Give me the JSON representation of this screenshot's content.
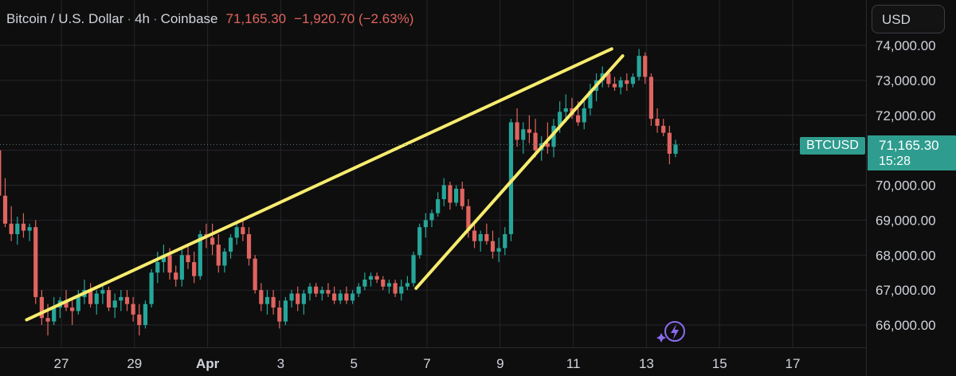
{
  "header": {
    "symbol": "Bitcoin / U.S. Dollar",
    "interval": "4h",
    "exchange": "Coinbase",
    "price": "71,165.30",
    "change": "−1,920.70 (−2.63%)",
    "separator": "·"
  },
  "currency_button": "USD",
  "price_tag": {
    "symbol": "BTCUSD",
    "price": "71,165.30",
    "countdown": "15:28"
  },
  "colors": {
    "up": "#26a69a",
    "down": "#e0645f",
    "trendline": "#f7ec6e",
    "background": "#0e0e0e",
    "grid": "#26262c"
  },
  "chart_data": {
    "type": "candlestick",
    "y_axis": {
      "ticks": [
        66000,
        67000,
        68000,
        69000,
        70000,
        71000,
        72000,
        73000,
        74000
      ],
      "tick_labels": [
        "66,000.00",
        "67,000.00",
        "68,000.00",
        "69,000.00",
        "70,000.00",
        "",
        "72,000.00",
        "73,000.00",
        "74,000.00"
      ]
    },
    "x_axis": {
      "ticks": [
        27,
        29,
        31,
        33,
        35,
        37,
        39,
        41,
        43,
        45,
        47
      ],
      "tick_labels": [
        "27",
        "29",
        "Apr",
        "3",
        "5",
        "7",
        "9",
        "11",
        "13",
        "15",
        "17"
      ]
    },
    "last_price": 71165.3,
    "trendlines": [
      {
        "from": [
          26.05,
          66150
        ],
        "to": [
          42.05,
          73900
        ]
      },
      {
        "from": [
          36.7,
          67050
        ],
        "to": [
          42.35,
          73700
        ]
      }
    ],
    "candles": [
      [
        71500,
        71900,
        70800,
        71200
      ],
      [
        71200,
        71700,
        70900,
        71400
      ],
      [
        71400,
        71900,
        70800,
        71000
      ],
      [
        71000,
        71400,
        70600,
        70900
      ],
      [
        70900,
        71500,
        70700,
        71300
      ],
      [
        71300,
        71700,
        70900,
        71000
      ],
      [
        71000,
        71300,
        69600,
        69700
      ],
      [
        69700,
        70200,
        68800,
        68900
      ],
      [
        68900,
        69400,
        68400,
        68600
      ],
      [
        68600,
        69100,
        68300,
        68900
      ],
      [
        68900,
        69200,
        68500,
        68700
      ],
      [
        68700,
        68900,
        68400,
        68800
      ],
      [
        68800,
        69000,
        66600,
        66800
      ],
      [
        66800,
        67000,
        66000,
        66200
      ],
      [
        66200,
        66600,
        65700,
        66100
      ],
      [
        66100,
        66800,
        66000,
        66500
      ],
      [
        66500,
        66800,
        66200,
        66700
      ],
      [
        66700,
        67000,
        66400,
        66500
      ],
      [
        66500,
        66700,
        66000,
        66400
      ],
      [
        66400,
        67000,
        66300,
        66800
      ],
      [
        66800,
        67300,
        66600,
        67000
      ],
      [
        67000,
        67200,
        66500,
        66600
      ],
      [
        66600,
        67000,
        66300,
        66900
      ],
      [
        66900,
        67200,
        66600,
        67000
      ],
      [
        67000,
        67100,
        66400,
        66500
      ],
      [
        66500,
        66900,
        66200,
        66700
      ],
      [
        66700,
        67000,
        66400,
        66800
      ],
      [
        66800,
        67000,
        66400,
        66600
      ],
      [
        66600,
        66800,
        66100,
        66300
      ],
      [
        66300,
        66600,
        65700,
        66000
      ],
      [
        66000,
        66700,
        65900,
        66600
      ],
      [
        66600,
        67600,
        66500,
        67500
      ],
      [
        67500,
        68100,
        67200,
        67800
      ],
      [
        67800,
        68300,
        67500,
        68000
      ],
      [
        68000,
        68200,
        67300,
        67500
      ],
      [
        67500,
        67700,
        67100,
        67300
      ],
      [
        67300,
        68200,
        67100,
        68000
      ],
      [
        68000,
        68300,
        67600,
        67800
      ],
      [
        67800,
        68100,
        67200,
        67400
      ],
      [
        67400,
        68700,
        67300,
        68600
      ],
      [
        68600,
        68900,
        68200,
        68500
      ],
      [
        68500,
        68900,
        68000,
        68300
      ],
      [
        68300,
        68600,
        67500,
        67700
      ],
      [
        67700,
        68200,
        67500,
        68100
      ],
      [
        68100,
        68600,
        67900,
        68500
      ],
      [
        68500,
        68900,
        68300,
        68800
      ],
      [
        68800,
        69000,
        68400,
        68600
      ],
      [
        68600,
        68800,
        67700,
        67900
      ],
      [
        67900,
        68000,
        66900,
        67000
      ],
      [
        67000,
        67200,
        66400,
        66600
      ],
      [
        66600,
        67000,
        66300,
        66800
      ],
      [
        66800,
        67000,
        66300,
        66500
      ],
      [
        66500,
        66700,
        65900,
        66100
      ],
      [
        66100,
        66800,
        66000,
        66700
      ],
      [
        66700,
        67000,
        66500,
        66900
      ],
      [
        66900,
        67100,
        66400,
        66600
      ],
      [
        66600,
        67000,
        66300,
        66900
      ],
      [
        66900,
        67200,
        66700,
        67100
      ],
      [
        67100,
        67200,
        66800,
        66900
      ],
      [
        66900,
        67100,
        66700,
        67000
      ],
      [
        67000,
        67200,
        66800,
        66900
      ],
      [
        66900,
        67100,
        66600,
        66700
      ],
      [
        66700,
        67000,
        66600,
        66900
      ],
      [
        66900,
        67100,
        66600,
        66700
      ],
      [
        66700,
        67000,
        66600,
        66900
      ],
      [
        66900,
        67200,
        66800,
        67100
      ],
      [
        67100,
        67500,
        67000,
        67300
      ],
      [
        67300,
        67500,
        67100,
        67400
      ],
      [
        67400,
        67500,
        67200,
        67300
      ],
      [
        67300,
        67400,
        67000,
        67100
      ],
      [
        67100,
        67300,
        66900,
        67200
      ],
      [
        67200,
        67300,
        66800,
        66900
      ],
      [
        66900,
        67300,
        66700,
        67100
      ],
      [
        67100,
        67400,
        67000,
        67200
      ],
      [
        67200,
        68100,
        67100,
        68000
      ],
      [
        68000,
        68900,
        67900,
        68800
      ],
      [
        68800,
        69200,
        68500,
        69000
      ],
      [
        69000,
        69300,
        68800,
        69200
      ],
      [
        69200,
        69800,
        69100,
        69600
      ],
      [
        69600,
        70200,
        69400,
        70000
      ],
      [
        70000,
        70100,
        69300,
        69500
      ],
      [
        69500,
        70000,
        69400,
        69900
      ],
      [
        69900,
        70100,
        69300,
        69400
      ],
      [
        69400,
        69600,
        68500,
        68700
      ],
      [
        68700,
        69000,
        68200,
        68400
      ],
      [
        68400,
        68700,
        68100,
        68600
      ],
      [
        68600,
        68900,
        68300,
        68400
      ],
      [
        68400,
        68700,
        67900,
        68100
      ],
      [
        68100,
        68500,
        67800,
        68200
      ],
      [
        68200,
        68800,
        68000,
        68600
      ],
      [
        68600,
        71900,
        68400,
        71800
      ],
      [
        71800,
        72200,
        71100,
        71300
      ],
      [
        71300,
        71800,
        70900,
        71600
      ],
      [
        71600,
        72000,
        71200,
        71500
      ],
      [
        71500,
        71900,
        70800,
        71000
      ],
      [
        71000,
        71400,
        70700,
        71200
      ],
      [
        71200,
        71800,
        70900,
        71100
      ],
      [
        71100,
        71900,
        70800,
        71700
      ],
      [
        71700,
        72400,
        71500,
        72100
      ],
      [
        72100,
        72600,
        71800,
        72200
      ],
      [
        72200,
        72500,
        71900,
        72000
      ],
      [
        72000,
        72400,
        71700,
        71800
      ],
      [
        71800,
        72400,
        71600,
        72200
      ],
      [
        72200,
        72900,
        72000,
        72700
      ],
      [
        72700,
        73200,
        72400,
        73000
      ],
      [
        73000,
        73400,
        72800,
        73200
      ],
      [
        73200,
        73300,
        72800,
        72900
      ],
      [
        72900,
        73100,
        72700,
        72800
      ],
      [
        72800,
        73100,
        72600,
        73000
      ],
      [
        73000,
        73200,
        72700,
        72900
      ],
      [
        72900,
        73200,
        72800,
        73100
      ],
      [
        73100,
        73900,
        73000,
        73700
      ],
      [
        73700,
        73800,
        72900,
        73100
      ],
      [
        73100,
        73200,
        71700,
        71900
      ],
      [
        71900,
        72200,
        71500,
        71700
      ],
      [
        71700,
        71900,
        71400,
        71500
      ],
      [
        71500,
        71700,
        70600,
        70900
      ],
      [
        70900,
        71300,
        70800,
        71165
      ]
    ],
    "last_candle_offset": 1,
    "annotation_icon": "lightning-icon"
  }
}
